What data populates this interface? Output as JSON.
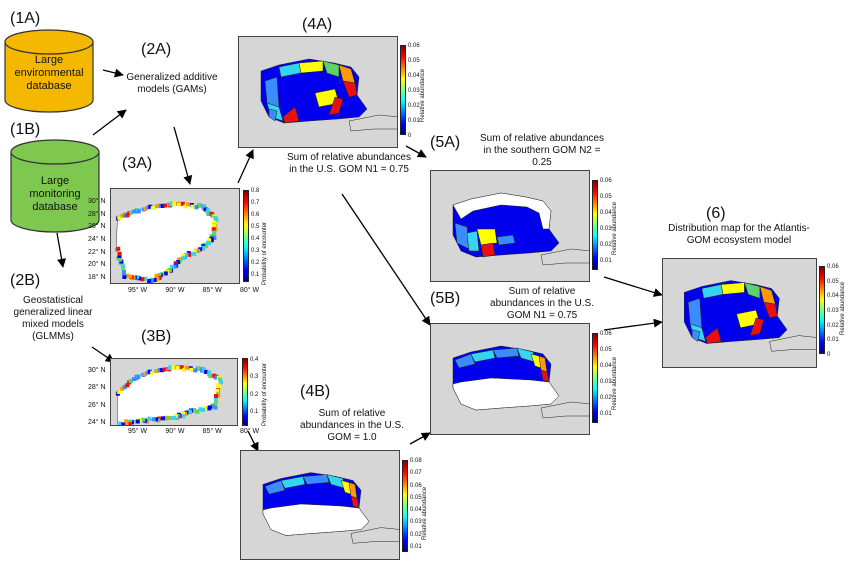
{
  "labels": {
    "l1a": "(1A)",
    "l1b": "(1B)",
    "l2a": "(2A)",
    "l2b": "(2B)",
    "l3a": "(3A)",
    "l3b": "(3B)",
    "l4a": "(4A)",
    "l4b": "(4B)",
    "l5a": "(5A)",
    "l5b": "(5B)",
    "l6": "(6)"
  },
  "cylinders": {
    "environmental": {
      "text": "Large environmental database",
      "color": "#f5b800"
    },
    "monitoring": {
      "text": "Large monitoring database",
      "color": "#7ec850"
    }
  },
  "texts": {
    "gams": "Generalized additive models (GAMs)",
    "glmms": "Geostatistical generalized linear mixed models (GLMMs)",
    "sum4a": "Sum of relative abundances in the U.S. GOM N1 = 0.75",
    "sum4b": "Sum of relative abundances in the U.S. GOM = 1.0",
    "sum5a": "Sum of relative abundances in the southern GOM N2 = 0.25",
    "sum5b": "Sum of relative abundances in the U.S. GOM N1 = 0.75",
    "dist6": "Distribution map for the Atlantis-GOM ecosystem model"
  },
  "colorbars": {
    "relative_abundance_label": "Relative abundance",
    "probability_label": "Probability of encounter",
    "ticks_4a": [
      "0.06",
      "0.05",
      "0.04",
      "0.03",
      "0.02",
      "0.01",
      "0"
    ],
    "ticks_5a": [
      "0.06",
      "0.05",
      "0.04",
      "0.03",
      "0.02",
      "0.01"
    ],
    "ticks_5b": [
      "0.06",
      "0.05",
      "0.04",
      "0.03",
      "0.02",
      "0.01"
    ],
    "ticks_4b": [
      "0.08",
      "0.07",
      "0.06",
      "0.05",
      "0.04",
      "0.03",
      "0.02",
      "0.01"
    ],
    "ticks_6": [
      "0.06",
      "0.05",
      "0.04",
      "0.03",
      "0.02",
      "0.01",
      "0"
    ],
    "ticks_3a": [
      "0.8",
      "0.7",
      "0.6",
      "0.5",
      "0.4",
      "0.3",
      "0.2",
      "0.1"
    ],
    "ticks_3b": [
      "0.4",
      "0.3",
      "0.2",
      "0.1"
    ]
  },
  "axes_3a": {
    "lat": [
      "30° N",
      "28° N",
      "26° N",
      "24° N",
      "22° N",
      "20° N",
      "18° N"
    ],
    "lon": [
      "95° W",
      "90° W",
      "85° W",
      "80° W"
    ]
  },
  "axes_3b": {
    "lat": [
      "30° N",
      "28° N",
      "26° N",
      "24° N"
    ],
    "lon": [
      "95° W",
      "90° W",
      "85° W",
      "80° W"
    ]
  },
  "colors": {
    "land": "#d6d6d6",
    "ocean_white": "#ffffff",
    "deep_blue": "#0000ee",
    "light_blue": "#3a8cff",
    "cyan": "#33d6f0",
    "yellow": "#ffff00",
    "orange": "#ff9a00",
    "red": "#e81010",
    "green": "#5ed36a"
  }
}
